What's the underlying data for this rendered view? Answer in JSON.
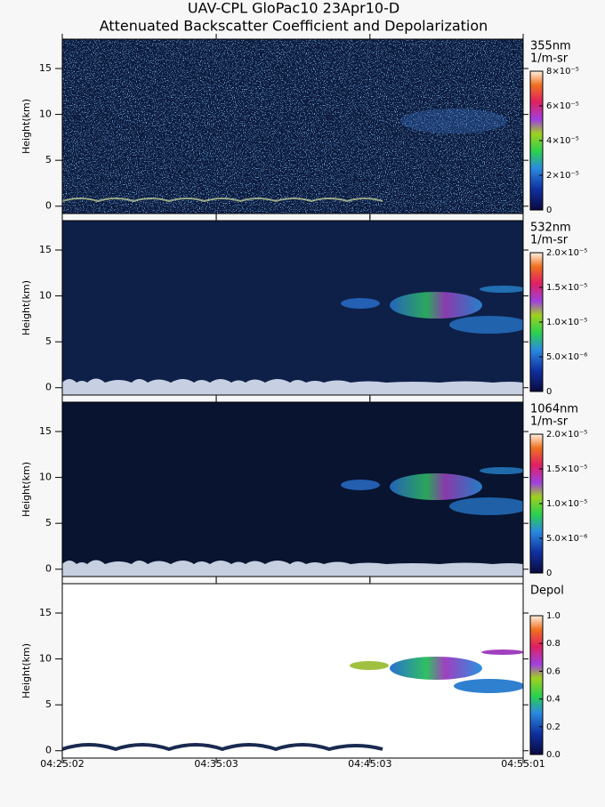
{
  "chart_data": [
    {
      "type": "heatmap",
      "title": "UAV-CPL GloPac10 23Apr10-D",
      "subtitle": "Attenuated Backscatter Coefficient and Depolarization",
      "ylabel": "Height(km)",
      "ylim": [
        -0.8,
        18.2
      ],
      "yticks": [
        0,
        5,
        10,
        15
      ],
      "colorbar": {
        "label": "355nm",
        "units": "1/m-sr",
        "lim": [
          0,
          8e-05
        ],
        "ticks": [
          0,
          {
            "value": 2e-05,
            "label": "2×10⁻⁵"
          },
          {
            "value": 4e-05,
            "label": "4×10⁻⁵"
          },
          {
            "value": 6e-05,
            "label": "6×10⁻⁵"
          },
          {
            "value": 8e-05,
            "label": "8×10⁻⁵"
          }
        ]
      }
    },
    {
      "type": "heatmap",
      "ylabel": "Height(km)",
      "ylim": [
        -0.8,
        18.2
      ],
      "yticks": [
        0,
        5,
        10,
        15
      ],
      "colorbar": {
        "label": "532nm",
        "units": "1/m-sr",
        "lim": [
          0,
          2e-05
        ],
        "ticks": [
          0,
          {
            "value": 5e-06,
            "label": "5.0×10⁻⁶"
          },
          {
            "value": 1e-05,
            "label": "1.0×10⁻⁵"
          },
          {
            "value": 1.5e-05,
            "label": "1.5×10⁻⁵"
          },
          {
            "value": 2e-05,
            "label": "2.0×10⁻⁵"
          }
        ]
      }
    },
    {
      "type": "heatmap",
      "ylabel": "Height(km)",
      "ylim": [
        -0.8,
        18.2
      ],
      "yticks": [
        0,
        5,
        10,
        15
      ],
      "colorbar": {
        "label": "1064nm",
        "units": "1/m-sr",
        "lim": [
          0,
          2e-05
        ],
        "ticks": [
          0,
          {
            "value": 5e-06,
            "label": "5.0×10⁻⁶"
          },
          {
            "value": 1e-05,
            "label": "1.0×10⁻⁵"
          },
          {
            "value": 1.5e-05,
            "label": "1.5×10⁻⁵"
          },
          {
            "value": 2e-05,
            "label": "2.0×10⁻⁵"
          }
        ]
      }
    },
    {
      "type": "heatmap",
      "ylabel": "Height(km)",
      "ylim": [
        -0.8,
        18.2
      ],
      "yticks": [
        0,
        5,
        10,
        15
      ],
      "xlim": [
        "04:25:02",
        "04:55:01"
      ],
      "xticks": [
        "04:25:02",
        "04:35:03",
        "04:45:03",
        "04:55:01"
      ],
      "colorbar": {
        "label": "Depol",
        "lim": [
          0,
          1
        ],
        "ticks": [
          {
            "value": 0,
            "label": "0.0"
          },
          0.2,
          0.4,
          0.6,
          0.8,
          {
            "value": 1,
            "label": "1.0"
          }
        ]
      }
    }
  ]
}
